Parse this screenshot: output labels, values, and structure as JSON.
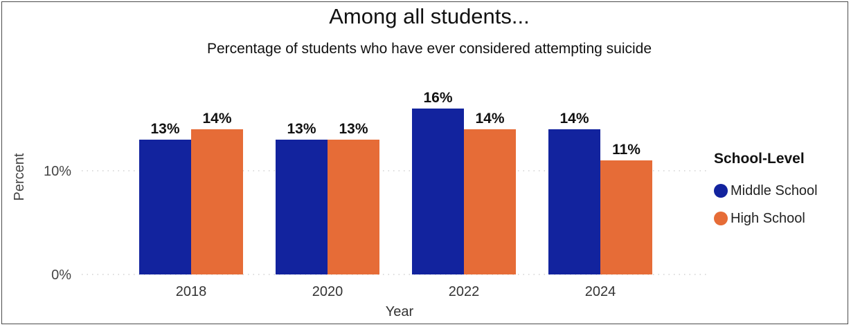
{
  "chart_data": {
    "type": "bar",
    "title": "Among all students...",
    "subtitle": "Percentage of students who have ever considered attempting suicide",
    "xlabel": "Year",
    "ylabel": "Percent",
    "categories": [
      "2018",
      "2020",
      "2022",
      "2024"
    ],
    "series": [
      {
        "name": "Middle School",
        "color": "#12239E",
        "values": [
          13,
          13,
          16,
          14
        ],
        "labels": [
          "13%",
          "13%",
          "16%",
          "14%"
        ]
      },
      {
        "name": "High School",
        "color": "#E66C37",
        "values": [
          14,
          13,
          14,
          11
        ],
        "labels": [
          "14%",
          "13%",
          "14%",
          "11%"
        ]
      }
    ],
    "ylim": [
      0,
      17
    ],
    "yticks": [
      0,
      10
    ],
    "ytick_labels": [
      "0%",
      "10%"
    ],
    "grid": true,
    "legend": {
      "title": "School-Level",
      "placement": "right"
    }
  }
}
